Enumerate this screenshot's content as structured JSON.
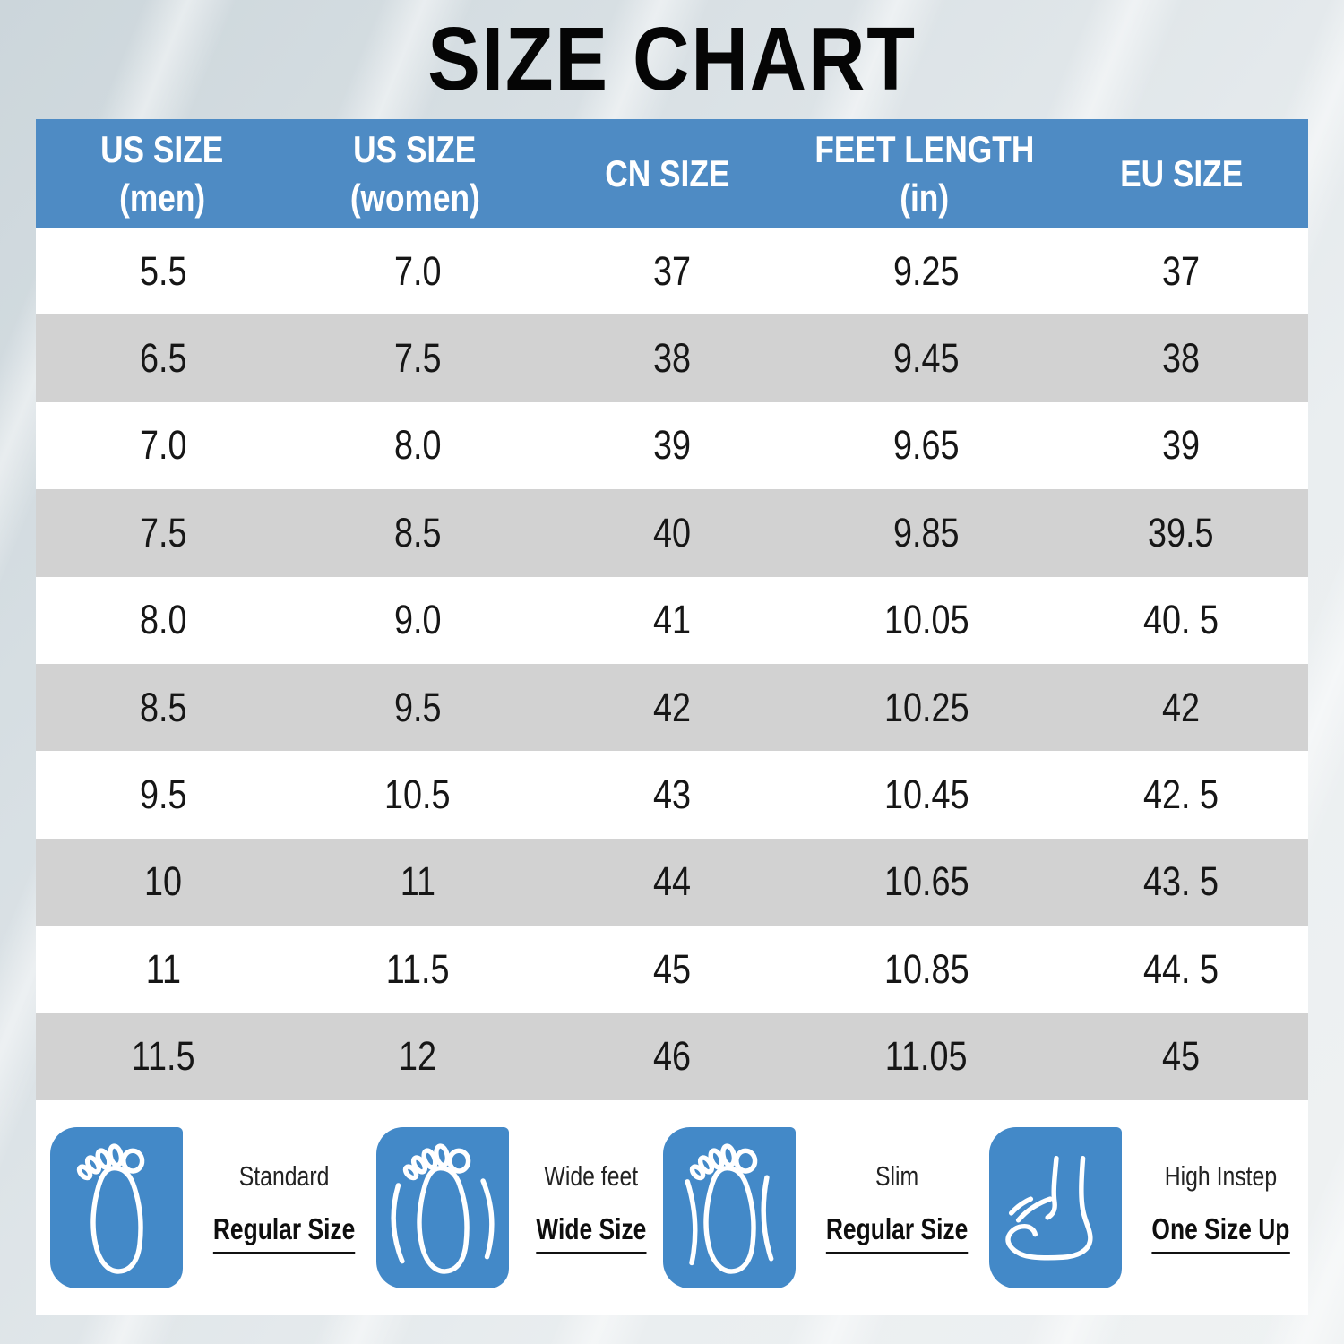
{
  "title": "SIZE CHART",
  "chart_data": {
    "type": "table",
    "title": "SIZE CHART",
    "columns": [
      "US SIZE (men)",
      "US SIZE (women)",
      "CN SIZE",
      "FEET LENGTH (in)",
      "EU SIZE"
    ],
    "rows": [
      [
        "5.5",
        "7.0",
        "37",
        "9.25",
        "37"
      ],
      [
        "6.5",
        "7.5",
        "38",
        "9.45",
        "38"
      ],
      [
        "7.0",
        "8.0",
        "39",
        "9.65",
        "39"
      ],
      [
        "7.5",
        "8.5",
        "40",
        "9.85",
        "39.5"
      ],
      [
        "8.0",
        "9.0",
        "41",
        "10.05",
        "40. 5"
      ],
      [
        "8.5",
        "9.5",
        "42",
        "10.25",
        "42"
      ],
      [
        "9.5",
        "10.5",
        "43",
        "10.45",
        "42. 5"
      ],
      [
        "10",
        "11",
        "44",
        "10.65",
        "43. 5"
      ],
      [
        "11",
        "11.5",
        "45",
        "10.85",
        "44. 5"
      ],
      [
        "11.5",
        "12",
        "46",
        "11.05",
        "45"
      ]
    ]
  },
  "table": {
    "headers": [
      {
        "line1": "US SIZE",
        "line2": "(men)"
      },
      {
        "line1": "US SIZE",
        "line2": "(women)"
      },
      {
        "line1": "CN SIZE",
        "line2": ""
      },
      {
        "line1": "FEET LENGTH",
        "line2": "(in)"
      },
      {
        "line1": "EU SIZE",
        "line2": ""
      }
    ]
  },
  "legend": [
    {
      "icon": "foot-standard-icon",
      "line1": "Standard",
      "line2": "Regular Size"
    },
    {
      "icon": "foot-wide-icon",
      "line1": "Wide feet",
      "line2": "Wide Size"
    },
    {
      "icon": "foot-slim-icon",
      "line1": "Slim",
      "line2": "Regular Size"
    },
    {
      "icon": "foot-high-instep-icon",
      "line1": "High Instep",
      "line2": "One Size Up"
    }
  ],
  "colors": {
    "header_bg": "#4e8bc4",
    "row_alt": "#d2d2d2",
    "row_bg": "#ffffff",
    "icon_bg": "#4389c8",
    "title_color": "#050505"
  }
}
